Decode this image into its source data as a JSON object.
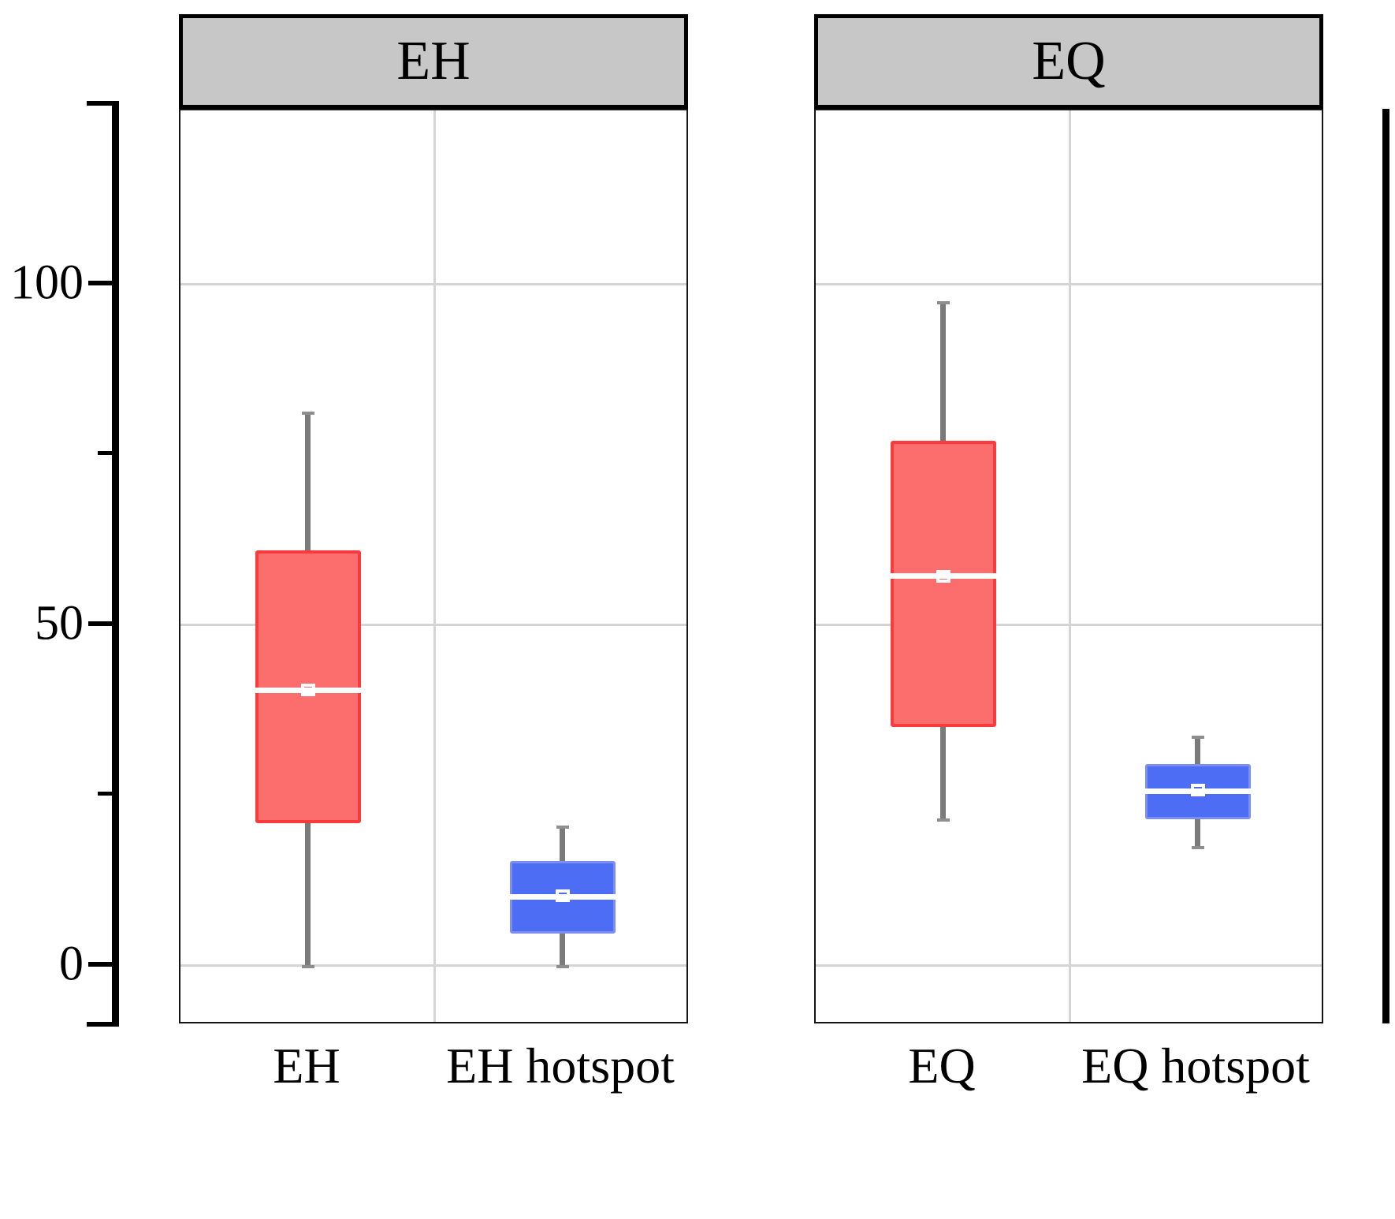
{
  "chart_data": {
    "type": "boxplot",
    "title": "",
    "xlabel": "",
    "ylabel": "",
    "y_axis": {
      "major_ticks": [
        0,
        50,
        100
      ],
      "major_tick_labels": [
        "0",
        "50",
        "100"
      ],
      "minor_ticks": [
        25,
        75
      ],
      "range": [
        -8.7,
        125.6
      ],
      "grid": "major horizontal gridlines at 0, 50, 100; one vertical minor gridline per facet"
    },
    "facets": [
      {
        "label": "EH",
        "boxes": [
          {
            "category": "EH",
            "color_key": "red",
            "whisker_low": 0,
            "q1": 21,
            "median": 40.5,
            "q3": 61,
            "whisker_high": 81,
            "mean": 40.5
          },
          {
            "category": "EH hotspot",
            "color_key": "blue",
            "whisker_low": 0,
            "q1": 4.7,
            "median": 10.1,
            "q3": 15.4,
            "whisker_high": 20.3,
            "mean": 10.3
          }
        ]
      },
      {
        "label": "EQ",
        "boxes": [
          {
            "category": "EQ",
            "color_key": "red",
            "whisker_low": 21.5,
            "q1": 35.1,
            "median": 57.2,
            "q3": 77.1,
            "whisker_high": 97.2,
            "mean": 57.2
          },
          {
            "category": "EQ hotspot",
            "color_key": "blue",
            "whisker_low": 17.5,
            "q1": 21.5,
            "median": 25.6,
            "q3": 29.6,
            "whisker_high": 33.5,
            "mean": 25.8
          }
        ]
      }
    ],
    "colors": {
      "red_fill": "#FC6D6D",
      "red_stroke": "#F93B3B",
      "blue_fill": "#4D6EF4",
      "blue_stroke": "#7C8EF2",
      "whisker": "#7A7A7A",
      "gridline": "#D5D5D5",
      "header_fill": "#C7C7C7",
      "median": "#FFFFFF"
    },
    "legend": "none"
  }
}
